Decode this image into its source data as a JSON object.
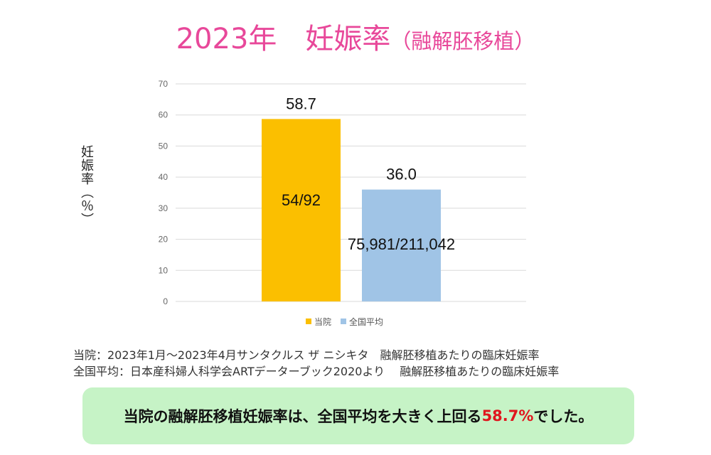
{
  "title": {
    "main": "2023年　妊娠率",
    "sub": "（融解胚移植）"
  },
  "chart_data": {
    "type": "bar",
    "categories": [
      "当院",
      "全国平均"
    ],
    "values": [
      58.7,
      36.0
    ],
    "value_labels": [
      "58.7",
      "36.0"
    ],
    "inner_labels": [
      "54/92",
      "75,981/211,042"
    ],
    "colors": [
      "#fbbf00",
      "#a0c4e6"
    ],
    "ylabel": "妊娠率（％）",
    "ylim": [
      0,
      70
    ],
    "yticks": [
      0,
      10,
      20,
      30,
      40,
      50,
      60,
      70
    ],
    "grid": true,
    "legend_position": "bottom",
    "legend": [
      "当院",
      "全国平均"
    ]
  },
  "notes": [
    "当院：2023年1月～2023年4月サンタクルス ザ ニシキタ　融解胚移植あたりの臨床妊娠率",
    "全国平均：日本産科婦人科学会ARTデーターブック2020より　 融解胚移植あたりの臨床妊娠率"
  ],
  "callout": {
    "before": "当院の融解胚移植妊娠率は、全国平均を大きく上回る",
    "highlight": "58.7%",
    "after": "でした。"
  }
}
